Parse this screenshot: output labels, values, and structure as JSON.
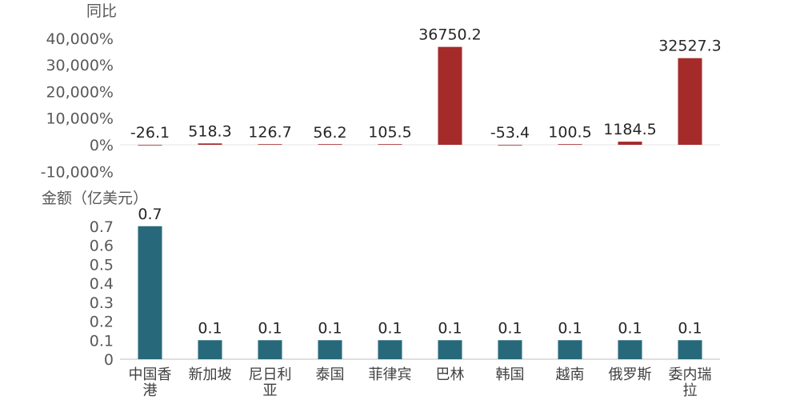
{
  "chart_data": [
    {
      "type": "bar",
      "title": "",
      "ylabel": "同比",
      "ylim": [
        -10000,
        40000
      ],
      "yticks": [
        "40,000%",
        "30,000%",
        "20,000%",
        "10,000%",
        "0%",
        "-10,000%"
      ],
      "ytick_values": [
        40000,
        30000,
        20000,
        10000,
        0,
        -10000
      ],
      "categories": [
        "中国香港",
        "新加坡",
        "尼日利亚",
        "泰国",
        "菲律宾",
        "巴林",
        "韩国",
        "越南",
        "俄罗斯",
        "委内瑞拉"
      ],
      "values": [
        -26.1,
        518.3,
        126.7,
        56.2,
        105.5,
        36750.2,
        -53.4,
        100.5,
        1184.5,
        32527.3
      ],
      "labels": [
        "-26.1",
        "518.3",
        "126.7",
        "56.2",
        "105.5",
        "36750.2",
        "-53.4",
        "100.5",
        "1184.5",
        "32527.3"
      ],
      "grid": false,
      "color": "#a52a2a"
    },
    {
      "type": "bar",
      "title": "",
      "ylabel": "金额（亿美元）",
      "ylim": [
        0,
        0.7
      ],
      "yticks": [
        "0.7",
        "0.6",
        "0.5",
        "0.4",
        "0.3",
        "0.2",
        "0.1",
        "0"
      ],
      "ytick_values": [
        0.7,
        0.6,
        0.5,
        0.4,
        0.3,
        0.2,
        0.1,
        0
      ],
      "categories": [
        "中国香港",
        "新加坡",
        "尼日利亚",
        "泰国",
        "菲律宾",
        "巴林",
        "韩国",
        "越南",
        "俄罗斯",
        "委内瑞拉"
      ],
      "category_lines": [
        [
          "中国香",
          "港"
        ],
        [
          "新加坡"
        ],
        [
          "尼日利",
          "亚"
        ],
        [
          "泰国"
        ],
        [
          "菲律宾"
        ],
        [
          "巴林"
        ],
        [
          "韩国"
        ],
        [
          "越南"
        ],
        [
          "俄罗斯"
        ],
        [
          "委内瑞",
          "拉"
        ]
      ],
      "values": [
        0.7,
        0.1,
        0.1,
        0.1,
        0.1,
        0.1,
        0.1,
        0.1,
        0.1,
        0.1
      ],
      "labels": [
        "0.7",
        "0.1",
        "0.1",
        "0.1",
        "0.1",
        "0.1",
        "0.1",
        "0.1",
        "0.1",
        "0.1"
      ],
      "grid": false,
      "color": "#27697a"
    }
  ]
}
